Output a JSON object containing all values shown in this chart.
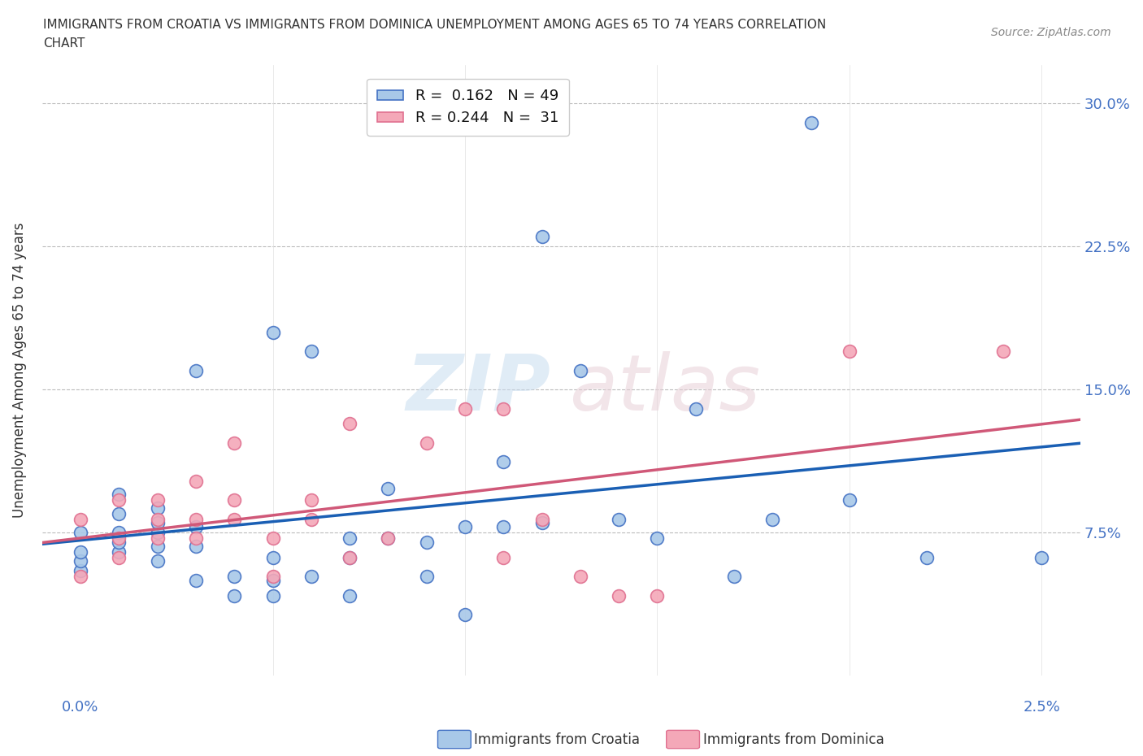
{
  "title_line1": "IMMIGRANTS FROM CROATIA VS IMMIGRANTS FROM DOMINICA UNEMPLOYMENT AMONG AGES 65 TO 74 YEARS CORRELATION",
  "title_line2": "CHART",
  "source": "Source: ZipAtlas.com",
  "ylabel": "Unemployment Among Ages 65 to 74 years",
  "ylim": [
    0,
    0.32
  ],
  "xlim": [
    -0.001,
    0.026
  ],
  "yticks": [
    0.075,
    0.15,
    0.225,
    0.3
  ],
  "ytick_labels": [
    "7.5%",
    "15.0%",
    "22.5%",
    "30.0%"
  ],
  "xtick_labels": [
    "0.0%",
    "",
    "",
    "",
    "",
    "2.5%"
  ],
  "croatia_color": "#a8c8e8",
  "dominica_color": "#f4a8b8",
  "croatia_edge_color": "#4472c4",
  "dominica_edge_color": "#e07090",
  "croatia_line_color": "#1a5fb4",
  "dominica_line_color": "#d05878",
  "R_croatia": "0.162",
  "N_croatia": "49",
  "R_dominica": "0.244",
  "N_dominica": "31",
  "croatia_x": [
    0.0,
    0.0,
    0.0,
    0.0,
    0.001,
    0.001,
    0.001,
    0.001,
    0.001,
    0.002,
    0.002,
    0.002,
    0.002,
    0.002,
    0.003,
    0.003,
    0.003,
    0.003,
    0.004,
    0.004,
    0.005,
    0.005,
    0.005,
    0.005,
    0.006,
    0.006,
    0.007,
    0.007,
    0.007,
    0.008,
    0.008,
    0.009,
    0.009,
    0.01,
    0.01,
    0.011,
    0.011,
    0.012,
    0.012,
    0.013,
    0.014,
    0.015,
    0.016,
    0.017,
    0.018,
    0.019,
    0.02,
    0.022,
    0.025
  ],
  "croatia_y": [
    0.055,
    0.06,
    0.065,
    0.075,
    0.065,
    0.07,
    0.075,
    0.085,
    0.095,
    0.06,
    0.068,
    0.075,
    0.08,
    0.088,
    0.05,
    0.068,
    0.078,
    0.16,
    0.042,
    0.052,
    0.042,
    0.05,
    0.062,
    0.18,
    0.052,
    0.17,
    0.042,
    0.062,
    0.072,
    0.072,
    0.098,
    0.052,
    0.07,
    0.032,
    0.078,
    0.078,
    0.112,
    0.08,
    0.23,
    0.16,
    0.082,
    0.072,
    0.14,
    0.052,
    0.082,
    0.29,
    0.092,
    0.062,
    0.062
  ],
  "dominica_x": [
    0.0,
    0.0,
    0.001,
    0.001,
    0.001,
    0.002,
    0.002,
    0.002,
    0.003,
    0.003,
    0.003,
    0.004,
    0.004,
    0.004,
    0.005,
    0.005,
    0.006,
    0.006,
    0.007,
    0.007,
    0.008,
    0.009,
    0.01,
    0.011,
    0.011,
    0.012,
    0.013,
    0.014,
    0.015,
    0.02,
    0.024
  ],
  "dominica_y": [
    0.052,
    0.082,
    0.062,
    0.072,
    0.092,
    0.072,
    0.082,
    0.092,
    0.072,
    0.082,
    0.102,
    0.082,
    0.092,
    0.122,
    0.052,
    0.072,
    0.082,
    0.092,
    0.062,
    0.132,
    0.072,
    0.122,
    0.14,
    0.062,
    0.14,
    0.082,
    0.052,
    0.042,
    0.042,
    0.17,
    0.17
  ]
}
